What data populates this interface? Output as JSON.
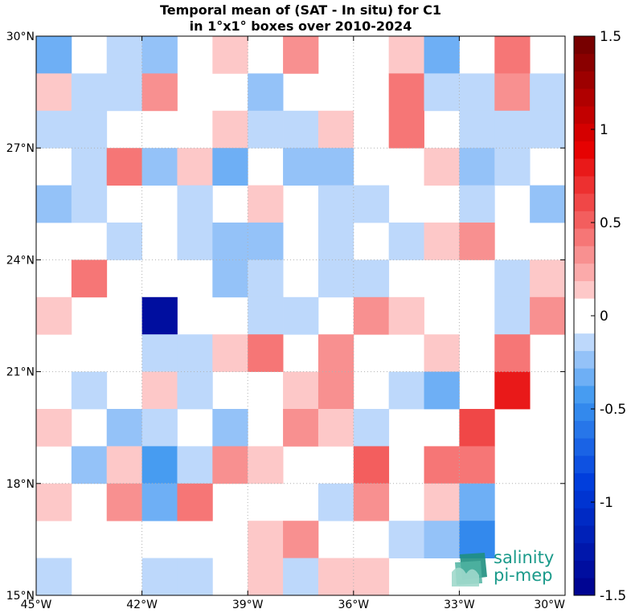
{
  "chart_data": {
    "type": "heatmap",
    "title_lines": [
      "Temporal mean of (SAT - In situ) for C1",
      "in 1°x1° boxes over 2010-2024"
    ],
    "x_ticks": [
      {
        "value": -45,
        "label": "45°W"
      },
      {
        "value": -42,
        "label": "42°W"
      },
      {
        "value": -39,
        "label": "39°W"
      },
      {
        "value": -36,
        "label": "36°W"
      },
      {
        "value": -33,
        "label": "33°W"
      },
      {
        "value": -30,
        "label": "30°W"
      }
    ],
    "y_ticks": [
      {
        "value": 15,
        "label": "15°N"
      },
      {
        "value": 18,
        "label": "18°N"
      },
      {
        "value": 21,
        "label": "21°N"
      },
      {
        "value": 24,
        "label": "24°N"
      },
      {
        "value": 27,
        "label": "27°N"
      },
      {
        "value": 30,
        "label": "30°N"
      }
    ],
    "xlim": [
      -45,
      -30
    ],
    "ylim": [
      15,
      30
    ],
    "cell_size_deg": 1,
    "grid": true,
    "colorbar": {
      "range": [
        -1.5,
        1.5
      ],
      "levels": 32,
      "ticks": [
        {
          "value": 1.5,
          "label": "1.5"
        },
        {
          "value": 1,
          "label": "1"
        },
        {
          "value": 0.5,
          "label": "0.5"
        },
        {
          "value": 0,
          "label": "0"
        },
        {
          "value": -0.5,
          "label": "-0.5"
        },
        {
          "value": -1,
          "label": "-1"
        },
        {
          "value": -1.5,
          "label": "-1.5"
        }
      ]
    },
    "rows_top_to_bottom": [
      [
        -0.35,
        0,
        -0.1,
        -0.25,
        0,
        0.15,
        0,
        0.3,
        0,
        0,
        0.15,
        -0.35,
        0,
        0.4,
        0
      ],
      [
        0.15,
        -0.1,
        -0.1,
        0.3,
        0,
        0,
        -0.25,
        0,
        0,
        0,
        0.4,
        -0.1,
        -0.1,
        0.3,
        -0.1
      ],
      [
        -0.1,
        -0.1,
        0,
        0,
        0,
        0.15,
        -0.1,
        -0.1,
        0.15,
        0,
        0.4,
        0,
        -0.1,
        -0.1,
        -0.1
      ],
      [
        0,
        -0.1,
        0.4,
        -0.25,
        0.15,
        -0.35,
        0,
        -0.25,
        -0.25,
        0,
        0,
        0.15,
        -0.25,
        -0.1,
        0
      ],
      [
        -0.25,
        -0.1,
        0,
        0,
        -0.1,
        0,
        0.15,
        0,
        -0.1,
        -0.1,
        0,
        0,
        -0.1,
        0,
        -0.25
      ],
      [
        0,
        0,
        -0.1,
        0,
        -0.1,
        -0.2,
        -0.2,
        0,
        -0.1,
        0,
        -0.1,
        0.15,
        0.3,
        0,
        0
      ],
      [
        0,
        0.4,
        0,
        0,
        0,
        -0.2,
        -0.1,
        0,
        -0.1,
        -0.1,
        0,
        0,
        0,
        -0.1,
        0.15
      ],
      [
        0.15,
        0,
        0,
        -1.4,
        0,
        0,
        -0.1,
        -0.1,
        0,
        0.3,
        0.15,
        0,
        0,
        -0.1,
        0.3
      ],
      [
        0,
        0,
        0,
        -0.1,
        -0.1,
        0.15,
        0.45,
        0,
        0.3,
        0,
        0,
        0.15,
        0,
        0.45,
        0
      ],
      [
        0,
        -0.1,
        0,
        0.15,
        -0.1,
        0,
        0,
        0.15,
        0.3,
        0,
        -0.1,
        -0.35,
        0,
        0.75,
        0
      ],
      [
        0.15,
        0,
        -0.25,
        -0.1,
        0,
        -0.25,
        0,
        0.3,
        0.15,
        -0.1,
        0,
        0,
        0.65,
        0,
        0
      ],
      [
        0,
        -0.25,
        0.15,
        -0.4,
        -0.1,
        0.3,
        0.15,
        0,
        0,
        0.55,
        0,
        0.4,
        0.4,
        0,
        0
      ],
      [
        0.15,
        0,
        0.3,
        -0.3,
        0.45,
        0,
        0,
        0,
        -0.1,
        0.3,
        0,
        0.15,
        -0.35,
        0,
        0
      ],
      [
        0,
        0,
        0,
        0,
        0,
        0,
        0.15,
        0.3,
        0,
        0,
        -0.1,
        -0.25,
        -0.55,
        0,
        0
      ],
      [
        -0.1,
        0,
        0,
        -0.1,
        -0.1,
        0,
        0.15,
        -0.1,
        0.15,
        0.15,
        0,
        0,
        0,
        0,
        0
      ]
    ]
  },
  "logo": {
    "line1": "salinity",
    "line2": "pi-mep"
  },
  "colors": {
    "max": "#6b0000",
    "min": "#00008f",
    "grid": "#b0b0b0",
    "logo": "#1a9a8a"
  }
}
